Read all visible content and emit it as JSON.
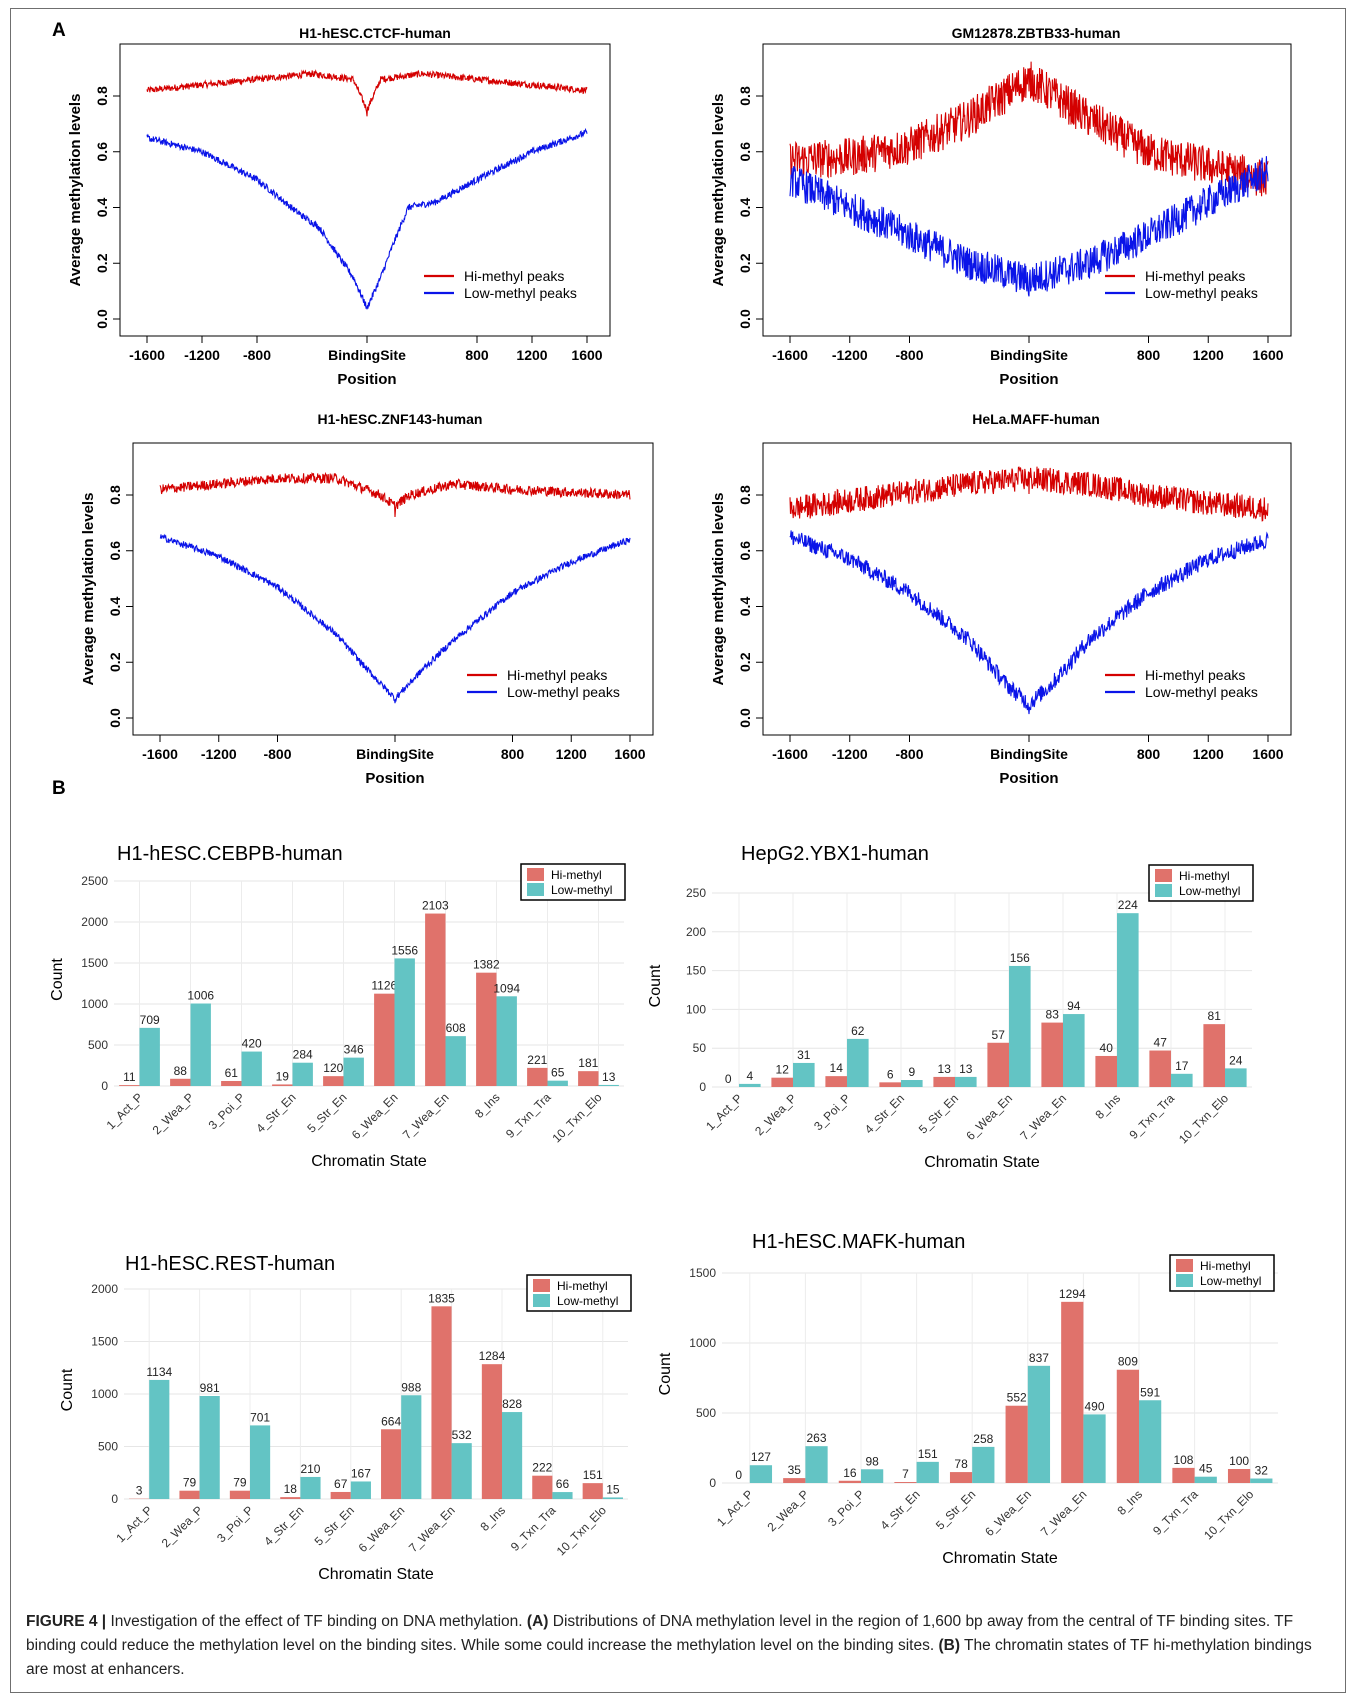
{
  "panels": {
    "a": "A",
    "b": "B"
  },
  "caption": {
    "label": "FIGURE 4 |",
    "parts": [
      {
        "t": "Investigation of the effect of TF binding on DNA methylation. ",
        "b": false
      },
      {
        "t": "(A)",
        "b": true
      },
      {
        "t": " Distributions of DNA methylation level in the region of 1,600 bp away from the central of TF binding sites. TF binding could reduce the methylation level on the binding sites. While some could increase the methylation level on the binding sites. ",
        "b": false
      },
      {
        "t": "(B)",
        "b": true
      },
      {
        "t": " The chromatin states of TF hi-methylation bindings are most at enhancers.",
        "b": false
      }
    ]
  },
  "colors": {
    "hi_line": "#d40000",
    "low_line": "#0a14e8",
    "hi_bar": "#e0726b",
    "low_bar": "#63c4c4"
  },
  "chart_data": [
    {
      "type": "line",
      "title": "H1-hESC.CTCF-human",
      "xlabel": "Position",
      "ylabel": "Average methylation levels",
      "xlim": [
        -1600,
        1600
      ],
      "ylim": [
        0,
        0.8
      ],
      "xticks": [
        "-1600",
        "-1200",
        "-800",
        "BindingSite",
        "800",
        "1200",
        "1600"
      ],
      "yticks": [
        "0.0",
        "0.2",
        "0.4",
        "0.6",
        "0.8"
      ],
      "legend_position": "bottom-right",
      "series": [
        {
          "name": "Hi-methyl peaks",
          "color": "#d40000",
          "noise": 0.012,
          "x": [
            -1600,
            -1200,
            -800,
            -400,
            -100,
            0,
            100,
            400,
            800,
            1200,
            1600
          ],
          "y": [
            0.82,
            0.84,
            0.86,
            0.88,
            0.86,
            0.75,
            0.86,
            0.88,
            0.86,
            0.84,
            0.82
          ]
        },
        {
          "name": "Low-methyl peaks",
          "color": "#0a14e8",
          "noise": 0.012,
          "x": [
            -1600,
            -1200,
            -800,
            -500,
            -350,
            -200,
            -100,
            0,
            100,
            200,
            300,
            500,
            800,
            1200,
            1600
          ],
          "y": [
            0.65,
            0.6,
            0.5,
            0.38,
            0.33,
            0.22,
            0.15,
            0.04,
            0.15,
            0.28,
            0.4,
            0.42,
            0.5,
            0.6,
            0.67
          ]
        }
      ]
    },
    {
      "type": "line",
      "title": "GM12878.ZBTB33-human",
      "xlabel": "Position",
      "ylabel": "Average methylation levels",
      "xlim": [
        -1600,
        1600
      ],
      "ylim": [
        0,
        0.8
      ],
      "xticks": [
        "-1600",
        "-1200",
        "-800",
        "BindingSite",
        "800",
        "1200",
        "1600"
      ],
      "yticks": [
        "0.0",
        "0.2",
        "0.4",
        "0.6",
        "0.8"
      ],
      "legend_position": "bottom-right",
      "series": [
        {
          "name": "Hi-methyl peaks",
          "color": "#d40000",
          "noise": 0.07,
          "x": [
            -1600,
            -1200,
            -800,
            -400,
            0,
            400,
            800,
            1200,
            1600
          ],
          "y": [
            0.57,
            0.58,
            0.62,
            0.72,
            0.86,
            0.72,
            0.6,
            0.55,
            0.5
          ]
        },
        {
          "name": "Low-methyl peaks",
          "color": "#0a14e8",
          "noise": 0.06,
          "x": [
            -1600,
            -1200,
            -800,
            -400,
            0,
            400,
            800,
            1200,
            1600
          ],
          "y": [
            0.5,
            0.4,
            0.3,
            0.2,
            0.14,
            0.2,
            0.3,
            0.42,
            0.53
          ]
        }
      ]
    },
    {
      "type": "line",
      "title": "H1-hESC.ZNF143-human",
      "xlabel": "Position",
      "ylabel": "Average methylation levels",
      "xlim": [
        -1600,
        1600
      ],
      "ylim": [
        0,
        0.8
      ],
      "xticks": [
        "-1600",
        "-1200",
        "-800",
        "BindingSite",
        "800",
        "1200",
        "1600"
      ],
      "yticks": [
        "0.0",
        "0.2",
        "0.4",
        "0.6",
        "0.8"
      ],
      "legend_position": "bottom-right",
      "series": [
        {
          "name": "Hi-methyl peaks",
          "color": "#d40000",
          "noise": 0.018,
          "x": [
            -1600,
            -1200,
            -800,
            -400,
            -100,
            0,
            100,
            400,
            800,
            1200,
            1600
          ],
          "y": [
            0.82,
            0.84,
            0.86,
            0.86,
            0.8,
            0.76,
            0.8,
            0.84,
            0.82,
            0.81,
            0.8
          ]
        },
        {
          "name": "Low-methyl peaks",
          "color": "#0a14e8",
          "noise": 0.012,
          "x": [
            -1600,
            -1200,
            -800,
            -400,
            -200,
            0,
            200,
            400,
            800,
            1200,
            1600
          ],
          "y": [
            0.65,
            0.58,
            0.47,
            0.3,
            0.18,
            0.07,
            0.18,
            0.28,
            0.45,
            0.56,
            0.64
          ]
        }
      ]
    },
    {
      "type": "line",
      "title": "HeLa.MAFF-human",
      "xlabel": "Position",
      "ylabel": "Average methylation levels",
      "xlim": [
        -1600,
        1600
      ],
      "ylim": [
        0,
        0.8
      ],
      "xticks": [
        "-1600",
        "-1200",
        "-800",
        "BindingSite",
        "800",
        "1200",
        "1600"
      ],
      "yticks": [
        "0.0",
        "0.2",
        "0.4",
        "0.6",
        "0.8"
      ],
      "legend_position": "bottom-right",
      "series": [
        {
          "name": "Hi-methyl peaks",
          "color": "#d40000",
          "noise": 0.045,
          "x": [
            -1600,
            -1200,
            -800,
            -400,
            0,
            400,
            800,
            1200,
            1600
          ],
          "y": [
            0.75,
            0.78,
            0.81,
            0.84,
            0.86,
            0.84,
            0.8,
            0.77,
            0.75
          ]
        },
        {
          "name": "Low-methyl peaks",
          "color": "#0a14e8",
          "noise": 0.03,
          "x": [
            -1600,
            -1200,
            -800,
            -400,
            -150,
            0,
            150,
            400,
            800,
            1200,
            1600
          ],
          "y": [
            0.65,
            0.57,
            0.45,
            0.28,
            0.12,
            0.05,
            0.12,
            0.28,
            0.45,
            0.57,
            0.64
          ]
        }
      ]
    },
    {
      "type": "bar",
      "title": "H1-hESC.CEBPB-human",
      "xlabel": "Chromatin State",
      "ylabel": "Count",
      "ylim": [
        0,
        2500
      ],
      "yticks": [
        0,
        500,
        1000,
        1500,
        2000,
        2500
      ],
      "categories": [
        "1_Act_P",
        "2_Wea_P",
        "3_Poi_P",
        "4_Str_En",
        "5_Str_En",
        "6_Wea_En",
        "7_Wea_En",
        "8_Ins",
        "9_Txn_Tra",
        "10_Txn_Elo"
      ],
      "legend_position": "top-right",
      "series": [
        {
          "name": "Hi-methyl",
          "values": [
            11,
            88,
            61,
            19,
            120,
            1126,
            2103,
            1382,
            221,
            181
          ]
        },
        {
          "name": "Low-methyl",
          "values": [
            709,
            1006,
            420,
            284,
            346,
            1556,
            608,
            1094,
            65,
            13
          ]
        }
      ]
    },
    {
      "type": "bar",
      "title": "HepG2.YBX1-human",
      "xlabel": "Chromatin State",
      "ylabel": "Count",
      "ylim": [
        0,
        250
      ],
      "yticks": [
        0,
        50,
        100,
        150,
        200,
        250
      ],
      "categories": [
        "1_Act_P",
        "2_Wea_P",
        "3_Poi_P",
        "4_Str_En",
        "5_Str_En",
        "6_Wea_En",
        "7_Wea_En",
        "8_Ins",
        "9_Txn_Tra",
        "10_Txn_Elo"
      ],
      "legend_position": "top-right",
      "series": [
        {
          "name": "Hi-methyl",
          "values": [
            0,
            12,
            14,
            6,
            13,
            57,
            83,
            40,
            47,
            81
          ]
        },
        {
          "name": "Low-methyl",
          "values": [
            4,
            31,
            62,
            9,
            13,
            156,
            94,
            224,
            17,
            24
          ]
        }
      ]
    },
    {
      "type": "bar",
      "title": "H1-hESC.REST-human",
      "xlabel": "Chromatin State",
      "ylabel": "Count",
      "ylim": [
        0,
        2000
      ],
      "yticks": [
        0,
        500,
        1000,
        1500,
        2000
      ],
      "categories": [
        "1_Act_P",
        "2_Wea_P",
        "3_Poi_P",
        "4_Str_En",
        "5_Str_En",
        "6_Wea_En",
        "7_Wea_En",
        "8_Ins",
        "9_Txn_Tra",
        "10_Txn_Elo"
      ],
      "legend_position": "top-right",
      "series": [
        {
          "name": "Hi-methyl",
          "values": [
            3,
            79,
            79,
            18,
            67,
            664,
            1835,
            1284,
            222,
            151
          ]
        },
        {
          "name": "Low-methyl",
          "values": [
            1134,
            981,
            701,
            210,
            167,
            988,
            532,
            828,
            66,
            15
          ]
        }
      ]
    },
    {
      "type": "bar",
      "title": "H1-hESC.MAFK-human",
      "xlabel": "Chromatin State",
      "ylabel": "Count",
      "ylim": [
        0,
        1500
      ],
      "yticks": [
        0,
        500,
        1000,
        1500
      ],
      "categories": [
        "1_Act_P",
        "2_Wea_P",
        "3_Poi_P",
        "4_Str_En",
        "5_Str_En",
        "6_Wea_En",
        "7_Wea_En",
        "8_Ins",
        "9_Txn_Tra",
        "10_Txn_Elo"
      ],
      "legend_position": "top-right",
      "series": [
        {
          "name": "Hi-methyl",
          "values": [
            0,
            35,
            16,
            7,
            78,
            552,
            1294,
            809,
            108,
            100
          ]
        },
        {
          "name": "Low-methyl",
          "values": [
            127,
            263,
            98,
            151,
            258,
            837,
            490,
            591,
            45,
            32
          ]
        }
      ]
    }
  ]
}
